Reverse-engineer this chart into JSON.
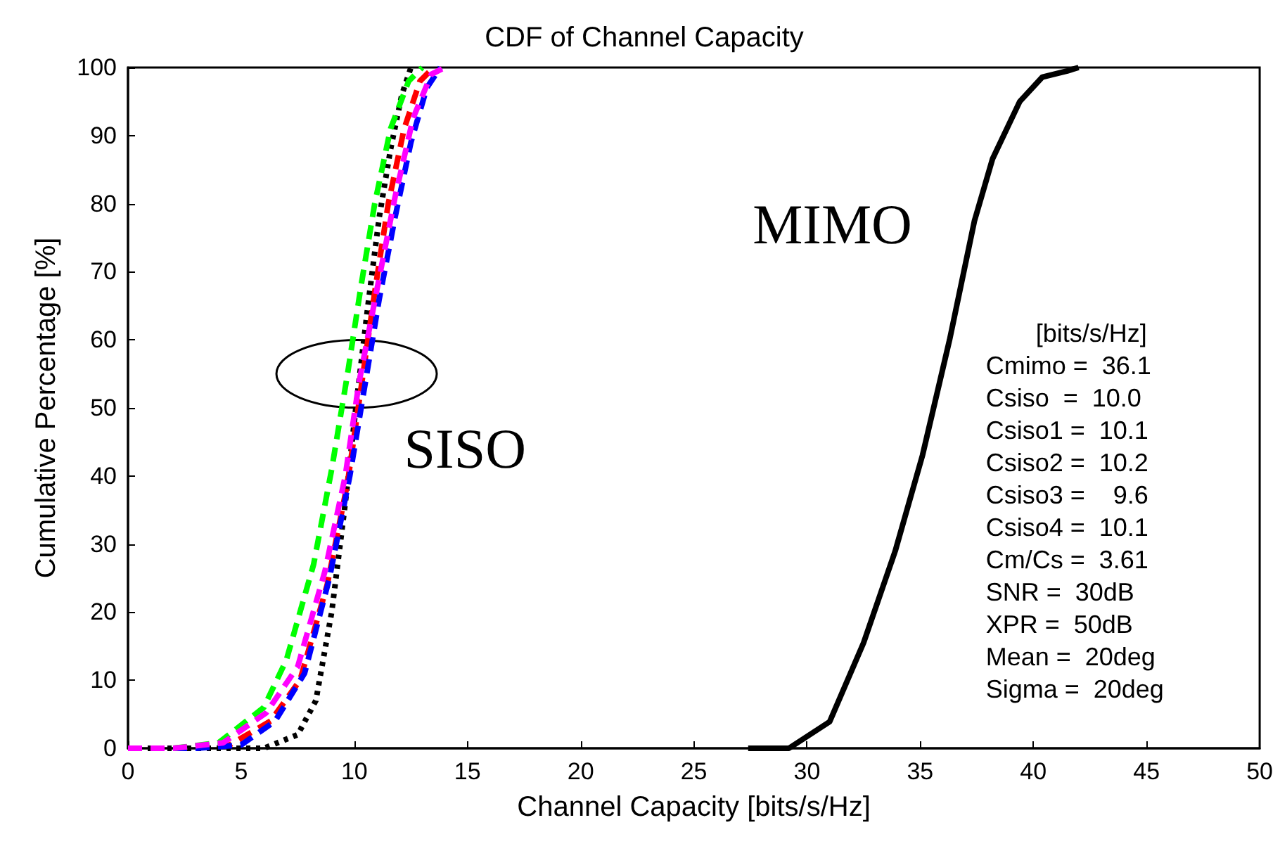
{
  "chart_data": {
    "type": "line",
    "title": "CDF of Channel Capacity",
    "xlabel": "Channel Capacity [bits/s/Hz]",
    "ylabel": "Cumulative Percentage [%]",
    "xlim": [
      0,
      50
    ],
    "xticks": [
      0,
      5,
      10,
      15,
      20,
      25,
      30,
      35,
      40,
      45,
      50
    ],
    "ylim": [
      0,
      100
    ],
    "yticks": [
      0,
      10,
      20,
      30,
      40,
      50,
      60,
      70,
      80,
      90,
      100
    ],
    "grid": false,
    "series": [
      {
        "color": "#000000",
        "line_style": "solid",
        "x": [
          27.4,
          29.2,
          31.0,
          32.5,
          33.9,
          35.1,
          36.3,
          37.4,
          38.2,
          39.4,
          40.4,
          41.5,
          42.0
        ],
        "values": [
          0,
          0,
          3.9,
          15.5,
          29,
          43,
          60,
          77.5,
          86.6,
          95,
          98.6,
          99.5,
          100
        ]
      },
      {
        "color": "#000000",
        "line_style": "dotted",
        "x": [
          0,
          4,
          6,
          7.5,
          8.3,
          9.0,
          9.6,
          10.1,
          10.6,
          11.1,
          11.6,
          12.1,
          12.5
        ],
        "values": [
          0,
          0,
          0,
          2,
          7,
          20,
          36,
          51,
          65,
          78,
          88,
          96,
          100
        ]
      },
      {
        "color": "#ff0000",
        "line_style": "dashed",
        "x": [
          0,
          2,
          4.5,
          6.3,
          7.6,
          8.8,
          9.7,
          10.3,
          10.9,
          11.5,
          12.2,
          12.9,
          13.5
        ],
        "values": [
          0,
          0,
          0.5,
          4,
          10,
          24,
          39,
          53,
          67,
          80,
          91,
          98,
          100
        ]
      },
      {
        "color": "#0000ff",
        "line_style": "dashed",
        "x": [
          0,
          3,
          5,
          6.5,
          7.8,
          8.9,
          9.8,
          10.5,
          11.1,
          11.8,
          12.5,
          13.2,
          13.8
        ],
        "values": [
          0,
          0,
          0.5,
          4,
          11,
          25,
          40,
          54,
          66,
          78,
          89,
          97,
          100
        ]
      },
      {
        "color": "#00ff00",
        "line_style": "dashed",
        "x": [
          0,
          2,
          4,
          6,
          7,
          8.2,
          9.0,
          9.7,
          10.3,
          10.9,
          11.6,
          12.4,
          13.0
        ],
        "values": [
          0,
          0,
          0.8,
          6,
          13,
          27,
          41,
          55,
          68,
          80,
          91,
          98,
          100
        ]
      },
      {
        "color": "#ff00ff",
        "line_style": "dashed",
        "x": [
          0,
          2,
          4.2,
          6.1,
          7.5,
          8.7,
          9.6,
          10.2,
          11.0,
          11.8,
          12.6,
          13.4,
          14.0
        ],
        "values": [
          0,
          0,
          0.8,
          5.2,
          12,
          26,
          40,
          53.6,
          67.4,
          81,
          92.6,
          99,
          100
        ]
      }
    ],
    "annotations": [
      "MIMO",
      "SISO",
      "[bits/s/Hz]",
      "Cmimo =  36.1",
      "Csiso  =  10.0",
      "Csiso1 =  10.1",
      "Csiso2 =  10.2",
      "Csiso3 =    9.6",
      "Csiso4 =  10.1",
      "Cm/Cs =  3.61",
      "SNR =  30dB",
      "XPR =  50dB",
      "Mean =  20deg",
      "Sigma =  20deg"
    ]
  }
}
